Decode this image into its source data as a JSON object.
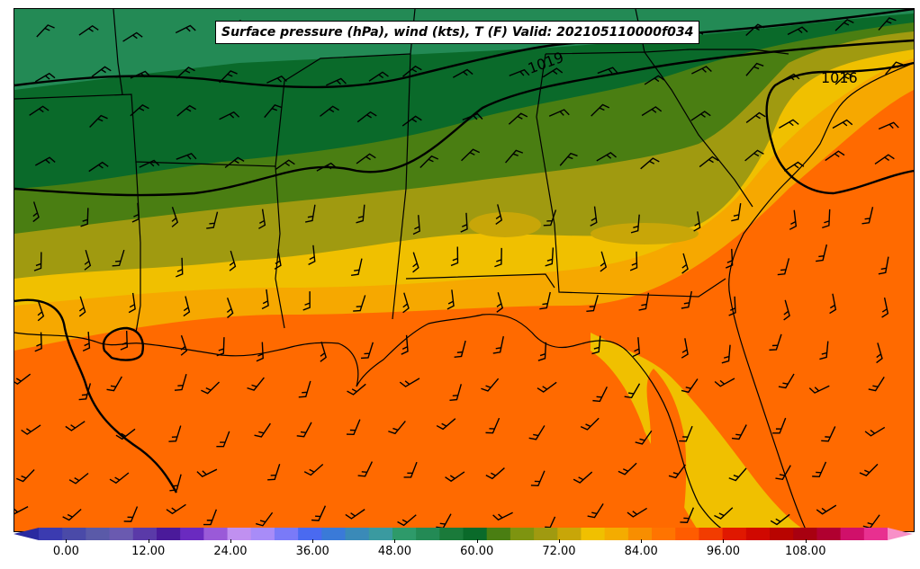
{
  "title": "Surface pressure (hPa), wind (kts), T (F) Valid: 202105110000f034",
  "isobar_labels": [
    "1019",
    "1016"
  ],
  "colorbar": {
    "min": -4,
    "max": 120,
    "step": 4,
    "tick_labels": [
      "0.00",
      "12.00",
      "24.00",
      "36.00",
      "48.00",
      "60.00",
      "72.00",
      "84.00",
      "96.00",
      "108.00"
    ],
    "colors": [
      "#3b3bb0",
      "#4a4aa8",
      "#5a5aa8",
      "#6a5ab0",
      "#5a3aa8",
      "#4a1a9a",
      "#6a2ac0",
      "#9a5ad8",
      "#c090f0",
      "#a88cf8",
      "#7a7af8",
      "#4a6af0",
      "#3a7ad8",
      "#3a8ab8",
      "#3a9aa0",
      "#2e9a6a",
      "#238a55",
      "#1a7a3a",
      "#0a6a2a",
      "#4a7e12",
      "#7e9410",
      "#a09a10",
      "#c8a608",
      "#f0c000",
      "#f4ac00",
      "#f88e00",
      "#ff7400",
      "#ff5c00",
      "#f23c00",
      "#e01800",
      "#d00800",
      "#b80400",
      "#a80010",
      "#b00030",
      "#d0106a",
      "#e83090"
    ]
  }
}
